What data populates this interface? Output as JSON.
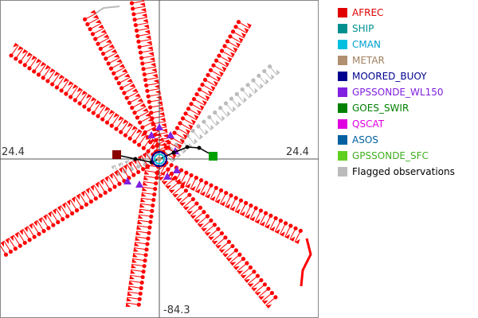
{
  "plot": {
    "lat_label": "24.4",
    "lon_label": "-84.3"
  },
  "legend": {
    "items": [
      {
        "label": "AFREC",
        "color": "#e00000",
        "text_color": "#e00000"
      },
      {
        "label": "SHIP",
        "color": "#009090",
        "text_color": "#009090"
      },
      {
        "label": "CMAN",
        "color": "#00c0e0",
        "text_color": "#00a0d0"
      },
      {
        "label": "METAR",
        "color": "#b09070",
        "text_color": "#a08060"
      },
      {
        "label": "MOORED_BUOY",
        "color": "#000090",
        "text_color": "#000090"
      },
      {
        "label": "GPSSONDE_WL150",
        "color": "#8020e0",
        "text_color": "#8020e0"
      },
      {
        "label": "GOES_SWIR",
        "color": "#008000",
        "text_color": "#008000"
      },
      {
        "label": "QSCAT",
        "color": "#e000e0",
        "text_color": "#e000e0"
      },
      {
        "label": "ASOS",
        "color": "#0060a0",
        "text_color": "#0060a0"
      },
      {
        "label": "GPSSONDE_SFC",
        "color": "#60d020",
        "text_color": "#40b020"
      },
      {
        "label": "Flagged observations",
        "color": "#bbbbbb",
        "text_color": "#000000"
      }
    ]
  },
  "colors": {
    "afrec": "#ff0000",
    "flagged": "#bbbbbb",
    "track": "#000000",
    "start_marker": "#8b0000",
    "end_marker": "#00a000",
    "axis": "#555555"
  }
}
